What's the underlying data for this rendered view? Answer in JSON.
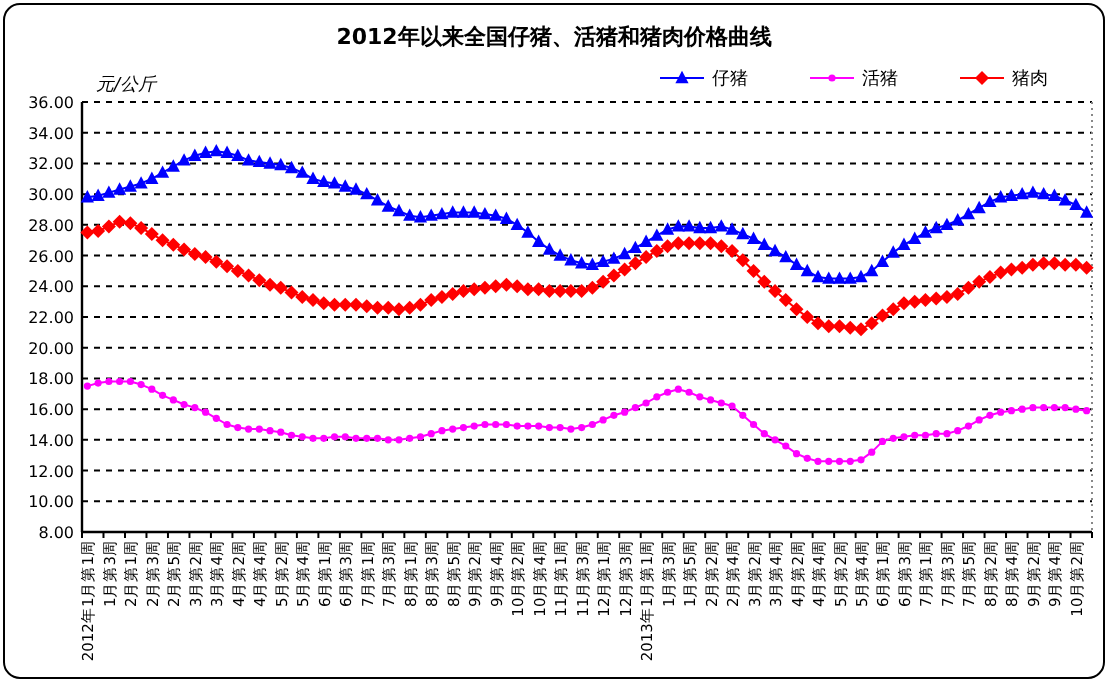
{
  "chart_data": {
    "type": "line",
    "title": "2012年以来全国仔猪、活猪和猪肉价格曲线",
    "ylabel": "元/公斤",
    "categories": [
      "2012年1月第1周",
      null,
      "1月第3周",
      null,
      "2月第1周",
      null,
      "2月第3周",
      null,
      "2月第5周",
      null,
      "3月第2周",
      null,
      "3月第4周",
      null,
      "4月第2周",
      null,
      "4月第4周",
      null,
      "5月第2周",
      null,
      "5月第4周",
      null,
      "6月第1周",
      null,
      "6月第3周",
      null,
      "7月第1周",
      null,
      "7月第3周",
      null,
      "8月第1周",
      null,
      "8月第3周",
      null,
      "8月第5周",
      null,
      "9月第2周",
      null,
      "9月第4周",
      null,
      "10月第2周",
      null,
      "10月第4周",
      null,
      "11月第1周",
      null,
      "11月第3周",
      null,
      "12月第1周",
      null,
      "12月第3周",
      null,
      "2013年1月第1周",
      null,
      "1月第3周",
      null,
      "1月第5周",
      null,
      "2月第2周",
      null,
      "2月第4周",
      null,
      "3月第2周",
      null,
      "3月第4周",
      null,
      "4月第2周",
      null,
      "4月第4周",
      null,
      "5月第2周",
      null,
      "5月第4周",
      null,
      "6月第1周",
      null,
      "6月第3周",
      null,
      "7月第1周",
      null,
      "7月第3周",
      null,
      "7月第5周",
      null,
      "8月第2周",
      null,
      "8月第4周",
      null,
      "9月第2周",
      null,
      "9月第4周",
      null,
      "10月第2周",
      null
    ],
    "series": [
      {
        "name": "仔猪",
        "color": "#0000ff",
        "marker": "triangle",
        "values": [
          29.8,
          29.9,
          30.1,
          30.3,
          30.5,
          30.7,
          31.0,
          31.4,
          31.8,
          32.2,
          32.5,
          32.7,
          32.8,
          32.7,
          32.5,
          32.2,
          32.1,
          32.0,
          31.9,
          31.7,
          31.4,
          31.0,
          30.8,
          30.7,
          30.5,
          30.3,
          30.0,
          29.6,
          29.2,
          28.9,
          28.6,
          28.5,
          28.6,
          28.7,
          28.8,
          28.8,
          28.8,
          28.7,
          28.6,
          28.4,
          28.0,
          27.5,
          26.9,
          26.4,
          26.0,
          25.7,
          25.5,
          25.4,
          25.6,
          25.8,
          26.1,
          26.5,
          26.9,
          27.3,
          27.7,
          27.9,
          27.9,
          27.8,
          27.8,
          27.9,
          27.7,
          27.4,
          27.1,
          26.7,
          26.3,
          25.9,
          25.4,
          25.0,
          24.6,
          24.5,
          24.5,
          24.5,
          24.6,
          25.0,
          25.6,
          26.2,
          26.7,
          27.1,
          27.5,
          27.8,
          28.0,
          28.3,
          28.7,
          29.1,
          29.5,
          29.8,
          29.9,
          30.0,
          30.1,
          30.0,
          29.9,
          29.6,
          29.3,
          28.8
        ]
      },
      {
        "name": "活猪",
        "color": "#ff00ff",
        "marker": "circle",
        "values": [
          17.5,
          17.7,
          17.8,
          17.8,
          17.8,
          17.6,
          17.3,
          16.9,
          16.6,
          16.3,
          16.1,
          15.8,
          15.4,
          15.0,
          14.8,
          14.7,
          14.7,
          14.6,
          14.5,
          14.3,
          14.2,
          14.1,
          14.1,
          14.2,
          14.2,
          14.1,
          14.1,
          14.1,
          14.0,
          14.0,
          14.1,
          14.2,
          14.4,
          14.6,
          14.7,
          14.8,
          14.9,
          15.0,
          15.0,
          15.0,
          14.9,
          14.9,
          14.9,
          14.8,
          14.8,
          14.7,
          14.8,
          15.0,
          15.3,
          15.6,
          15.8,
          16.1,
          16.4,
          16.8,
          17.1,
          17.3,
          17.1,
          16.8,
          16.6,
          16.4,
          16.2,
          15.6,
          15.0,
          14.4,
          14.0,
          13.6,
          13.1,
          12.8,
          12.6,
          12.6,
          12.6,
          12.6,
          12.7,
          13.2,
          13.9,
          14.1,
          14.2,
          14.3,
          14.3,
          14.4,
          14.4,
          14.6,
          14.9,
          15.3,
          15.6,
          15.8,
          15.9,
          16.0,
          16.1,
          16.1,
          16.1,
          16.1,
          16.0,
          15.9
        ]
      },
      {
        "name": "猪肉",
        "color": "#ff0000",
        "marker": "diamond",
        "values": [
          27.5,
          27.6,
          27.9,
          28.2,
          28.1,
          27.8,
          27.4,
          27.0,
          26.7,
          26.4,
          26.1,
          25.9,
          25.6,
          25.3,
          25.0,
          24.7,
          24.4,
          24.1,
          23.9,
          23.6,
          23.3,
          23.1,
          22.9,
          22.8,
          22.8,
          22.8,
          22.7,
          22.6,
          22.6,
          22.5,
          22.6,
          22.8,
          23.1,
          23.3,
          23.5,
          23.7,
          23.8,
          23.9,
          24.0,
          24.1,
          24.0,
          23.8,
          23.8,
          23.7,
          23.7,
          23.7,
          23.7,
          23.9,
          24.3,
          24.7,
          25.1,
          25.5,
          25.9,
          26.3,
          26.6,
          26.8,
          26.8,
          26.8,
          26.8,
          26.6,
          26.3,
          25.7,
          25.0,
          24.3,
          23.7,
          23.1,
          22.5,
          22.0,
          21.6,
          21.4,
          21.4,
          21.3,
          21.2,
          21.6,
          22.1,
          22.5,
          22.9,
          23.0,
          23.1,
          23.2,
          23.3,
          23.5,
          23.9,
          24.3,
          24.6,
          24.9,
          25.1,
          25.2,
          25.4,
          25.5,
          25.5,
          25.4,
          25.4,
          25.2
        ]
      }
    ],
    "ylim": [
      8,
      36
    ],
    "yticks": [
      {
        "value": 8,
        "label": "8.00"
      },
      {
        "value": 10,
        "label": "10.00"
      },
      {
        "value": 12,
        "label": "12.00"
      },
      {
        "value": 14,
        "label": "14.00"
      },
      {
        "value": 16,
        "label": "16.00"
      },
      {
        "value": 18,
        "label": "18.00"
      },
      {
        "value": 20,
        "label": "20.00"
      },
      {
        "value": 22,
        "label": "22.00"
      },
      {
        "value": 24,
        "label": "24.00"
      },
      {
        "value": 26,
        "label": "26.00"
      },
      {
        "value": 28,
        "label": "28.00"
      },
      {
        "value": 30,
        "label": "30.00"
      },
      {
        "value": 32,
        "label": "32.00"
      },
      {
        "value": 34,
        "label": "34.00"
      },
      {
        "value": 36,
        "label": "36.00"
      }
    ],
    "grid": "y",
    "legend": "top right",
    "line_style": "solid"
  }
}
